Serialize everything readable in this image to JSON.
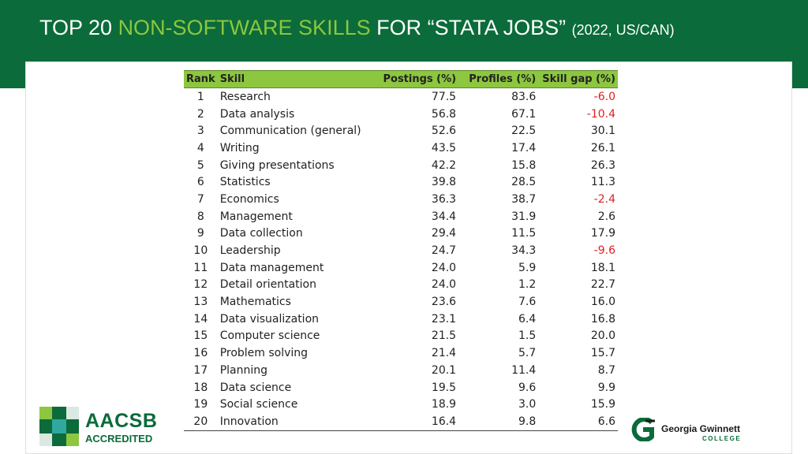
{
  "header": {
    "title_part1": "TOP 20 ",
    "title_accent": "NON-SOFTWARE SKILLS",
    "title_part2": " FOR “STATA JOBS” ",
    "title_small": "(2022, US/CAN)"
  },
  "table": {
    "headers": {
      "rank": "Rank",
      "skill": "Skill",
      "postings": "Postings (%)",
      "profiles": "Profiles (%)",
      "gap": "Skill gap (%)"
    },
    "rows": [
      {
        "rank": "1",
        "skill": "Research",
        "postings": "77.5",
        "profiles": "83.6",
        "gap": "-6.0"
      },
      {
        "rank": "2",
        "skill": "Data analysis",
        "postings": "56.8",
        "profiles": "67.1",
        "gap": "-10.4"
      },
      {
        "rank": "3",
        "skill": "Communication (general)",
        "postings": "52.6",
        "profiles": "22.5",
        "gap": "30.1"
      },
      {
        "rank": "4",
        "skill": "Writing",
        "postings": "43.5",
        "profiles": "17.4",
        "gap": "26.1"
      },
      {
        "rank": "5",
        "skill": "Giving presentations",
        "postings": "42.2",
        "profiles": "15.8",
        "gap": "26.3"
      },
      {
        "rank": "6",
        "skill": "Statistics",
        "postings": "39.8",
        "profiles": "28.5",
        "gap": "11.3"
      },
      {
        "rank": "7",
        "skill": "Economics",
        "postings": "36.3",
        "profiles": "38.7",
        "gap": "-2.4"
      },
      {
        "rank": "8",
        "skill": "Management",
        "postings": "34.4",
        "profiles": "31.9",
        "gap": "2.6"
      },
      {
        "rank": "9",
        "skill": "Data collection",
        "postings": "29.4",
        "profiles": "11.5",
        "gap": "17.9"
      },
      {
        "rank": "10",
        "skill": "Leadership",
        "postings": "24.7",
        "profiles": "34.3",
        "gap": "-9.6"
      },
      {
        "rank": "11",
        "skill": "Data management",
        "postings": "24.0",
        "profiles": "5.9",
        "gap": "18.1"
      },
      {
        "rank": "12",
        "skill": "Detail orientation",
        "postings": "24.0",
        "profiles": "1.2",
        "gap": "22.7"
      },
      {
        "rank": "13",
        "skill": "Mathematics",
        "postings": "23.6",
        "profiles": "7.6",
        "gap": "16.0"
      },
      {
        "rank": "14",
        "skill": "Data visualization",
        "postings": "23.1",
        "profiles": "6.4",
        "gap": "16.8"
      },
      {
        "rank": "15",
        "skill": "Computer science",
        "postings": "21.5",
        "profiles": "1.5",
        "gap": "20.0"
      },
      {
        "rank": "16",
        "skill": "Problem solving",
        "postings": "21.4",
        "profiles": "5.7",
        "gap": "15.7"
      },
      {
        "rank": "17",
        "skill": "Planning",
        "postings": "20.1",
        "profiles": "11.4",
        "gap": "8.7"
      },
      {
        "rank": "18",
        "skill": "Data science",
        "postings": "19.5",
        "profiles": "9.6",
        "gap": "9.9"
      },
      {
        "rank": "19",
        "skill": "Social science",
        "postings": "18.9",
        "profiles": "3.0",
        "gap": "15.9"
      },
      {
        "rank": "20",
        "skill": "Innovation",
        "postings": "16.4",
        "profiles": "9.8",
        "gap": "6.6"
      }
    ]
  },
  "logos": {
    "aacsb_name": "AACSB",
    "aacsb_sub": "ACCREDITED",
    "ggc_name": "Georgia Gwinnett",
    "ggc_sub": "COLLEGE"
  },
  "colors": {
    "header_bg": "#0b6b3a",
    "accent_green": "#8dc63f",
    "negative": "#e02020"
  }
}
